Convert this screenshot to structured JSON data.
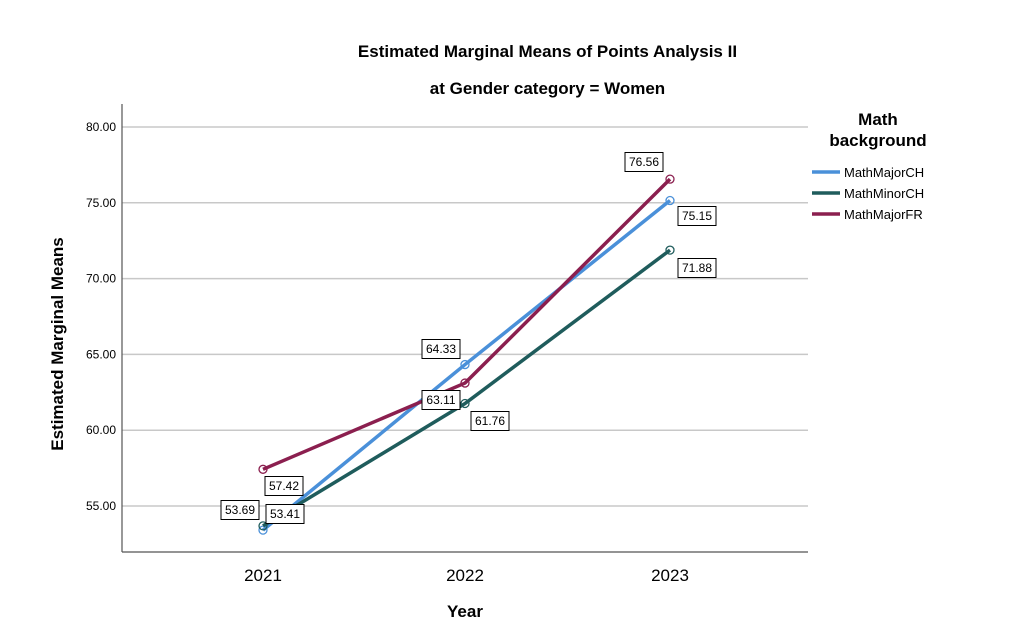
{
  "chart_data": {
    "type": "line",
    "title": "Estimated Marginal Means of Points Analysis II",
    "subtitle": "at Gender category = Women",
    "xlabel": "Year",
    "ylabel": "Estimated Marginal Means",
    "categories": [
      "2021",
      "2022",
      "2023"
    ],
    "yticks": [
      "55.00",
      "60.00",
      "65.00",
      "70.00",
      "75.00",
      "80.00"
    ],
    "ylim": [
      52.9,
      81.6
    ],
    "grid": true,
    "legend": {
      "title_line1": "Math",
      "title_line2": "background",
      "position": "top-right"
    },
    "series": [
      {
        "name": "MathMajorCH",
        "color": "#4a90d9",
        "values": [
          53.41,
          64.33,
          75.15
        ],
        "labels": [
          "53.41",
          "64.33",
          "75.15"
        ]
      },
      {
        "name": "MathMinorCH",
        "color": "#1f5c5c",
        "values": [
          53.69,
          61.76,
          71.88
        ],
        "labels": [
          "53.69",
          "61.76",
          "71.88"
        ]
      },
      {
        "name": "MathMajorFR",
        "color": "#8b1f4f",
        "values": [
          57.42,
          63.11,
          76.56
        ],
        "labels": [
          "57.42",
          "63.11",
          "76.56"
        ]
      }
    ]
  }
}
